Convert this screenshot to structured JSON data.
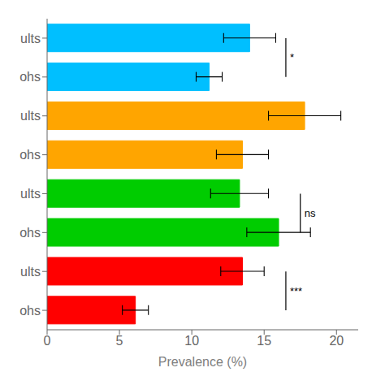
{
  "chart_data": {
    "type": "bar",
    "orientation": "horizontal",
    "categories": [
      "ults",
      "ohs",
      "ults",
      "ohs",
      "ults",
      "ohs",
      "ults",
      "ohs"
    ],
    "values": [
      14.0,
      11.2,
      17.8,
      13.5,
      13.3,
      16.0,
      13.5,
      6.1
    ],
    "errors": [
      1.8,
      0.9,
      2.5,
      1.8,
      2.0,
      2.2,
      1.5,
      0.9
    ],
    "colors": [
      "#00BFFF",
      "#00BFFF",
      "#FFA500",
      "#FFA500",
      "#00CC00",
      "#00CC00",
      "#FF0000",
      "#FF0000"
    ],
    "xlabel": "Prevalence (%)",
    "xlim": [
      0,
      21.5
    ],
    "xticks": [
      0,
      5,
      10,
      15,
      20
    ],
    "grid": false,
    "annotations": [
      {
        "text": "*",
        "x": 16.5,
        "categories": [
          0,
          1
        ]
      },
      {
        "text": "ns",
        "x": 17.5,
        "categories": [
          4,
          5
        ]
      },
      {
        "text": "***",
        "x": 16.5,
        "categories": [
          6,
          7
        ]
      }
    ]
  }
}
